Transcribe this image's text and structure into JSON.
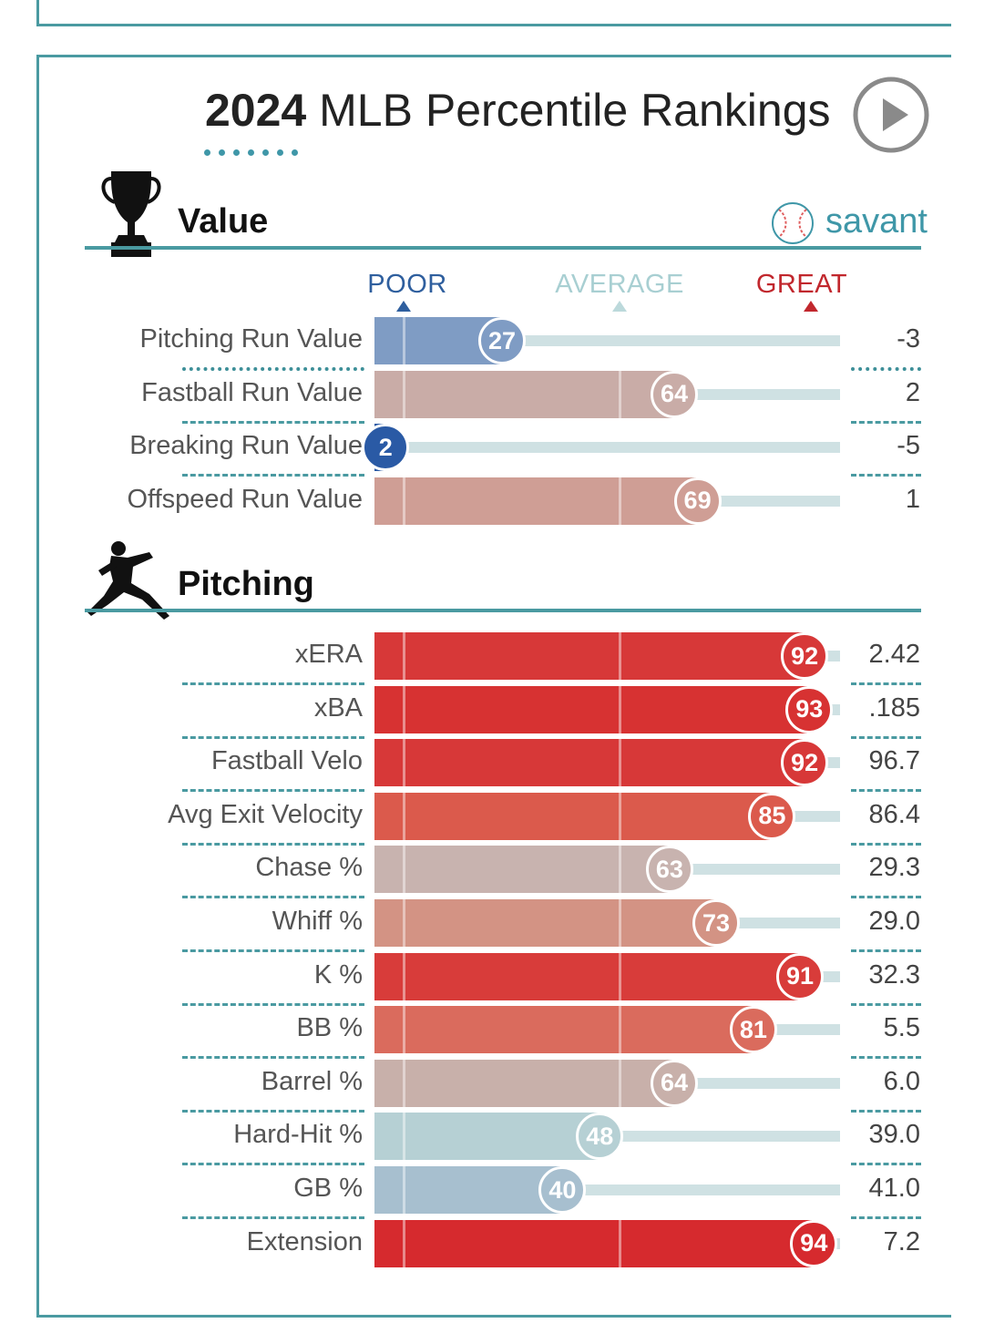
{
  "title": {
    "year": "2024",
    "rest": "MLB Percentile Rankings"
  },
  "brand": {
    "name": "savant",
    "color": "#3f97a8"
  },
  "scale": {
    "poor": "POOR",
    "average": "AVERAGE",
    "great": "GREAT",
    "poor_color": "#2f5f9e",
    "average_color": "#a8cfd2",
    "great_color": "#c1272d"
  },
  "chart_data": {
    "type": "bar",
    "orientation": "horizontal",
    "xlim": [
      0,
      100
    ],
    "sections": [
      {
        "name": "Value",
        "icon": "trophy-icon",
        "rows": [
          {
            "label": "Pitching Run Value",
            "percentile": 27,
            "value": "-3",
            "color": "#7f9cc4"
          },
          {
            "label": "Fastball Run Value",
            "percentile": 64,
            "value": "2",
            "color": "#c9aca7"
          },
          {
            "label": "Breaking Run Value",
            "percentile": 2,
            "value": "-5",
            "color": "#2a5aa5"
          },
          {
            "label": "Offspeed Run Value",
            "percentile": 69,
            "value": "1",
            "color": "#cf9e95"
          }
        ]
      },
      {
        "name": "Pitching",
        "icon": "pitcher-icon",
        "rows": [
          {
            "label": "xERA",
            "percentile": 92,
            "value": "2.42",
            "color": "#d73838"
          },
          {
            "label": "xBA",
            "percentile": 93,
            "value": ".185",
            "color": "#d73232"
          },
          {
            "label": "Fastball Velo",
            "percentile": 92,
            "value": "96.7",
            "color": "#d73838"
          },
          {
            "label": "Avg Exit Velocity",
            "percentile": 85,
            "value": "86.4",
            "color": "#db5a4c"
          },
          {
            "label": "Chase %",
            "percentile": 63,
            "value": "29.3",
            "color": "#c8b3af"
          },
          {
            "label": "Whiff %",
            "percentile": 73,
            "value": "29.0",
            "color": "#d39384"
          },
          {
            "label": "K %",
            "percentile": 91,
            "value": "32.3",
            "color": "#d83c3a"
          },
          {
            "label": "BB %",
            "percentile": 81,
            "value": "5.5",
            "color": "#da6b5d"
          },
          {
            "label": "Barrel %",
            "percentile": 64,
            "value": "6.0",
            "color": "#c8b0aa"
          },
          {
            "label": "Hard-Hit %",
            "percentile": 48,
            "value": "39.0",
            "color": "#b6d0d4"
          },
          {
            "label": "GB %",
            "percentile": 40,
            "value": "41.0",
            "color": "#a7bfcf"
          },
          {
            "label": "Extension",
            "percentile": 94,
            "value": "7.2",
            "color": "#d62a2e"
          }
        ]
      }
    ]
  }
}
